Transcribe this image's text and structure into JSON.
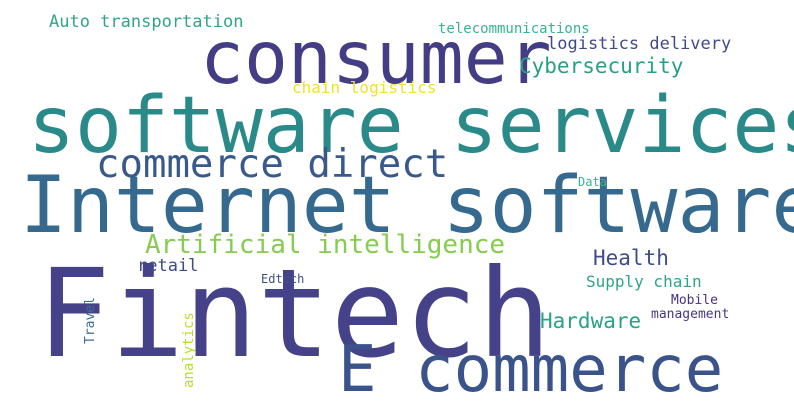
{
  "words": [
    {
      "id": "fintech",
      "text": "Fintech",
      "color": "#46428a"
    },
    {
      "id": "software-services",
      "text": "software services",
      "color": "#2a8a8a"
    },
    {
      "id": "internet-software",
      "text": "Internet software",
      "color": "#35698e"
    },
    {
      "id": "consumer",
      "text": "consumer",
      "color": "#423d84"
    },
    {
      "id": "e-commerce",
      "text": "E commerce",
      "color": "#3a538b"
    },
    {
      "id": "commerce-direct",
      "text": "commerce direct",
      "color": "#39598c"
    },
    {
      "id": "artificial-intelligence",
      "text": "Artificial intelligence",
      "color": "#86cc4e"
    },
    {
      "id": "auto-transportation",
      "text": "Auto transportation",
      "color": "#30a58a"
    },
    {
      "id": "telecommunications",
      "text": "telecommunications",
      "color": "#35b495"
    },
    {
      "id": "logistics-delivery",
      "text": "logistics delivery",
      "color": "#414a87"
    },
    {
      "id": "cybersecurity",
      "text": "Cybersecurity",
      "color": "#27a087"
    },
    {
      "id": "chain-logistics",
      "text": "chain logistics",
      "color": "#f0e22a"
    },
    {
      "id": "health",
      "text": "Health",
      "color": "#3f4d89"
    },
    {
      "id": "retail",
      "text": "retail",
      "color": "#3d4a88"
    },
    {
      "id": "data",
      "text": "Data",
      "color": "#37b496"
    },
    {
      "id": "supply-chain",
      "text": "Supply chain",
      "color": "#30a38a"
    },
    {
      "id": "edtech",
      "text": "Edtech",
      "color": "#3e5089"
    },
    {
      "id": "hardware",
      "text": "Hardware",
      "color": "#2ba187"
    },
    {
      "id": "mobile",
      "text": "Mobile",
      "color": "#46337e"
    },
    {
      "id": "management",
      "text": "management",
      "color": "#443a83"
    },
    {
      "id": "travel",
      "text": "Travel",
      "color": "#3c6e8e"
    },
    {
      "id": "analytics",
      "text": "analytics",
      "color": "#b8de2a"
    }
  ]
}
